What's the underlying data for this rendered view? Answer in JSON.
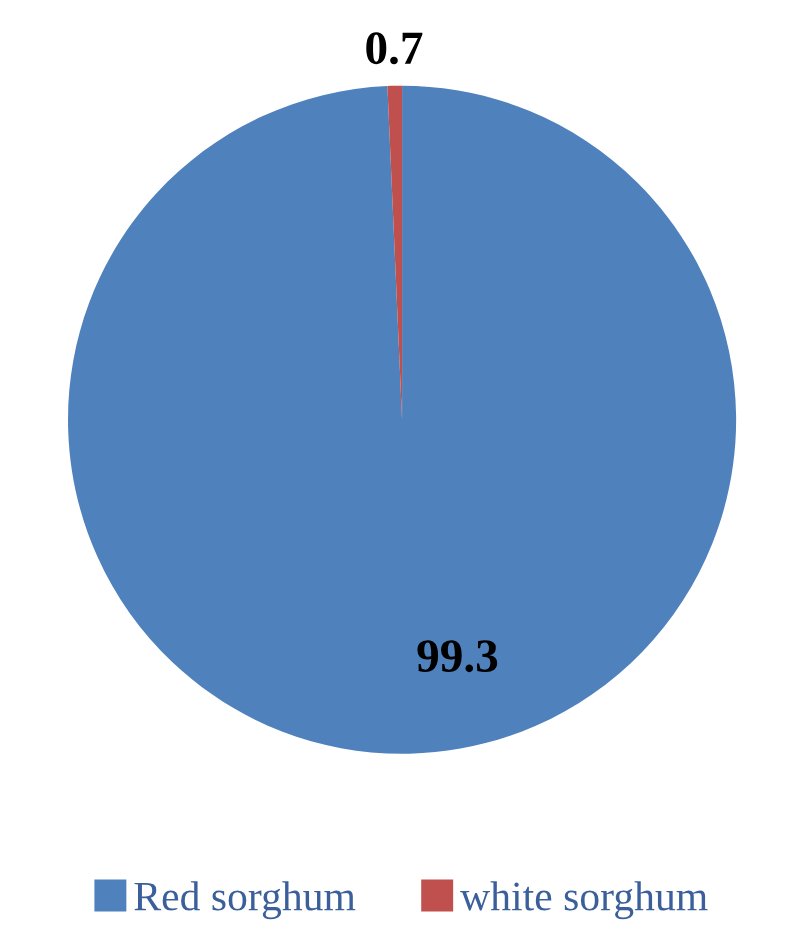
{
  "chart_data": {
    "type": "pie",
    "categories": [
      "Red sorghum",
      "white sorghum"
    ],
    "values": [
      99.3,
      0.7
    ],
    "colors": [
      "#4f81bd",
      "#c0504d"
    ],
    "data_labels": true,
    "legend": "bottom"
  }
}
